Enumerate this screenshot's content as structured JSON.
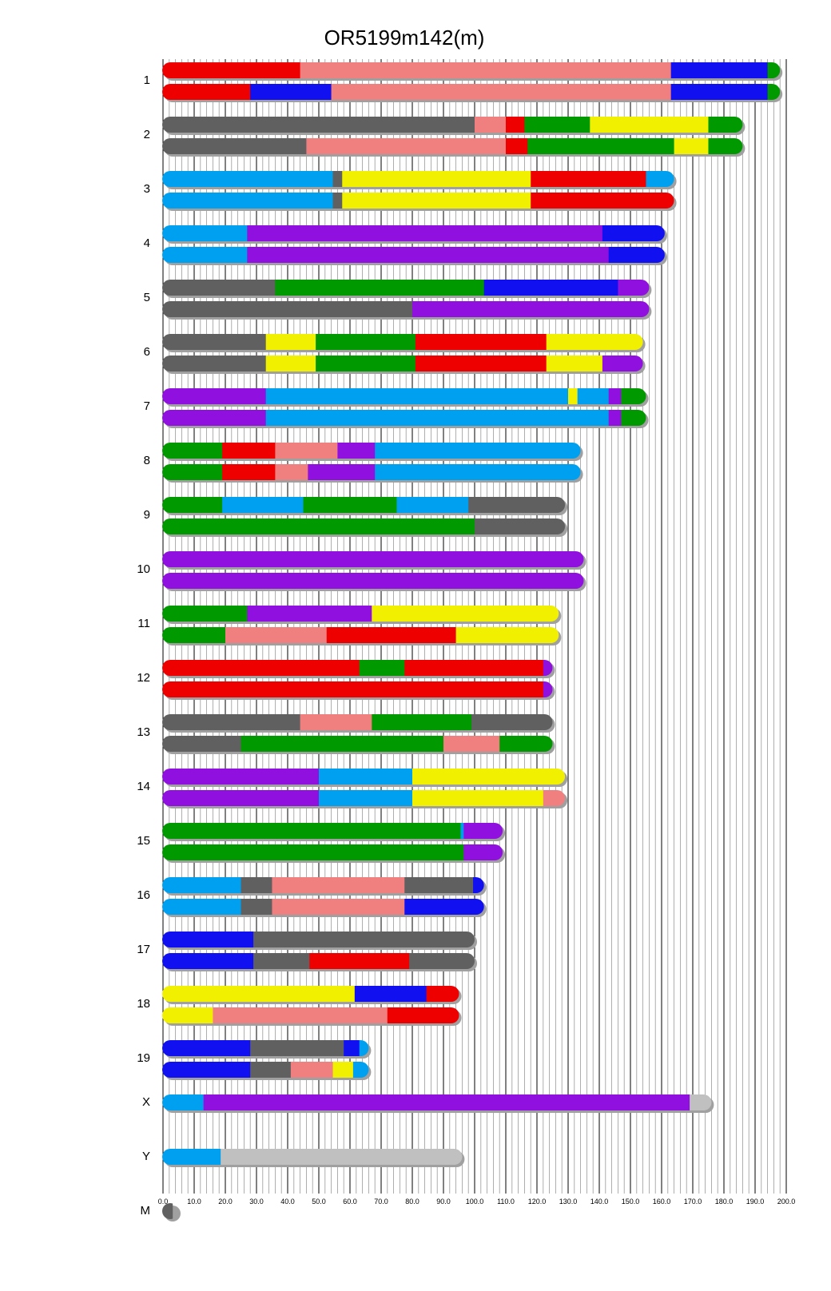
{
  "chart_data": {
    "type": "bar",
    "title": "OR5199m142(m)",
    "xlim": [
      0,
      200
    ],
    "x_ticks": [
      "0.0",
      "10.0",
      "20.0",
      "30.0",
      "40.0",
      "50.0",
      "60.0",
      "70.0",
      "80.0",
      "90.0",
      "100.0",
      "110.0",
      "120.0",
      "130.0",
      "140.0",
      "150.0",
      "160.0",
      "170.0",
      "180.0",
      "190.0",
      "200.0"
    ],
    "grid": true,
    "colors": {
      "red": "#ef0000",
      "pink": "#f08080",
      "blue": "#1010f0",
      "green": "#009900",
      "gray": "#606060",
      "yellow": "#f0f000",
      "cyan": "#00a0f0",
      "purple": "#9010e0",
      "lightgray": "#c0c0c0"
    },
    "chromosomes": [
      {
        "label": "1",
        "length": 198,
        "haplotypes": [
          [
            {
              "end": 44,
              "color": "red"
            },
            {
              "end": 163,
              "color": "pink"
            },
            {
              "end": 194,
              "color": "blue"
            },
            {
              "end": 198,
              "color": "green"
            }
          ],
          [
            {
              "end": 28,
              "color": "red"
            },
            {
              "end": 54,
              "color": "blue"
            },
            {
              "end": 163,
              "color": "pink"
            },
            {
              "end": 194,
              "color": "blue"
            },
            {
              "end": 198,
              "color": "green"
            }
          ]
        ]
      },
      {
        "label": "2",
        "length": 186,
        "haplotypes": [
          [
            {
              "end": 100,
              "color": "gray"
            },
            {
              "end": 110,
              "color": "pink"
            },
            {
              "end": 116,
              "color": "red"
            },
            {
              "end": 137,
              "color": "green"
            },
            {
              "end": 175,
              "color": "yellow"
            },
            {
              "end": 186,
              "color": "green"
            }
          ],
          [
            {
              "end": 46,
              "color": "gray"
            },
            {
              "end": 110,
              "color": "pink"
            },
            {
              "end": 117,
              "color": "red"
            },
            {
              "end": 164,
              "color": "green"
            },
            {
              "end": 175,
              "color": "yellow"
            },
            {
              "end": 186,
              "color": "green"
            }
          ]
        ]
      },
      {
        "label": "3",
        "length": 164,
        "haplotypes": [
          [
            {
              "end": 54.5,
              "color": "cyan"
            },
            {
              "end": 57.5,
              "color": "gray"
            },
            {
              "end": 118,
              "color": "yellow"
            },
            {
              "end": 155,
              "color": "red"
            },
            {
              "end": 164,
              "color": "cyan"
            }
          ],
          [
            {
              "end": 54.5,
              "color": "cyan"
            },
            {
              "end": 57.5,
              "color": "gray"
            },
            {
              "end": 118,
              "color": "yellow"
            },
            {
              "end": 164,
              "color": "red"
            }
          ]
        ]
      },
      {
        "label": "4",
        "length": 161,
        "haplotypes": [
          [
            {
              "end": 27,
              "color": "cyan"
            },
            {
              "end": 141,
              "color": "purple"
            },
            {
              "end": 161,
              "color": "blue"
            }
          ],
          [
            {
              "end": 27,
              "color": "cyan"
            },
            {
              "end": 143,
              "color": "purple"
            },
            {
              "end": 161,
              "color": "blue"
            }
          ]
        ]
      },
      {
        "label": "5",
        "length": 156,
        "haplotypes": [
          [
            {
              "end": 36,
              "color": "gray"
            },
            {
              "end": 103,
              "color": "green"
            },
            {
              "end": 146,
              "color": "blue"
            },
            {
              "end": 156,
              "color": "purple"
            }
          ],
          [
            {
              "end": 80,
              "color": "gray"
            },
            {
              "end": 156,
              "color": "purple"
            }
          ]
        ]
      },
      {
        "label": "6",
        "length": 154,
        "haplotypes": [
          [
            {
              "end": 33,
              "color": "gray"
            },
            {
              "end": 49,
              "color": "yellow"
            },
            {
              "end": 81,
              "color": "green"
            },
            {
              "end": 123,
              "color": "red"
            },
            {
              "end": 154,
              "color": "yellow"
            }
          ],
          [
            {
              "end": 33,
              "color": "gray"
            },
            {
              "end": 49,
              "color": "yellow"
            },
            {
              "end": 81,
              "color": "green"
            },
            {
              "end": 123,
              "color": "red"
            },
            {
              "end": 141,
              "color": "yellow"
            },
            {
              "end": 154,
              "color": "purple"
            }
          ]
        ]
      },
      {
        "label": "7",
        "length": 155,
        "haplotypes": [
          [
            {
              "end": 33,
              "color": "purple"
            },
            {
              "end": 130,
              "color": "cyan"
            },
            {
              "end": 133,
              "color": "yellow"
            },
            {
              "end": 143,
              "color": "cyan"
            },
            {
              "end": 147,
              "color": "purple"
            },
            {
              "end": 155,
              "color": "green"
            }
          ],
          [
            {
              "end": 33,
              "color": "purple"
            },
            {
              "end": 143,
              "color": "cyan"
            },
            {
              "end": 147,
              "color": "purple"
            },
            {
              "end": 155,
              "color": "green"
            }
          ]
        ]
      },
      {
        "label": "8",
        "length": 134,
        "haplotypes": [
          [
            {
              "end": 19,
              "color": "green"
            },
            {
              "end": 36,
              "color": "red"
            },
            {
              "end": 56,
              "color": "pink"
            },
            {
              "end": 68,
              "color": "purple"
            },
            {
              "end": 134,
              "color": "cyan"
            }
          ],
          [
            {
              "end": 19,
              "color": "green"
            },
            {
              "end": 36,
              "color": "red"
            },
            {
              "end": 46.5,
              "color": "pink"
            },
            {
              "end": 68,
              "color": "purple"
            },
            {
              "end": 134,
              "color": "cyan"
            }
          ]
        ]
      },
      {
        "label": "9",
        "length": 129,
        "haplotypes": [
          [
            {
              "end": 19,
              "color": "green"
            },
            {
              "end": 45,
              "color": "cyan"
            },
            {
              "end": 75,
              "color": "green"
            },
            {
              "end": 98,
              "color": "cyan"
            },
            {
              "end": 129,
              "color": "gray"
            }
          ],
          [
            {
              "end": 100,
              "color": "green"
            },
            {
              "end": 129,
              "color": "gray"
            }
          ]
        ]
      },
      {
        "label": "10",
        "length": 135,
        "haplotypes": [
          [
            {
              "end": 135,
              "color": "purple"
            }
          ],
          [
            {
              "end": 135,
              "color": "purple"
            }
          ]
        ]
      },
      {
        "label": "11",
        "length": 127,
        "haplotypes": [
          [
            {
              "end": 27,
              "color": "green"
            },
            {
              "end": 67,
              "color": "purple"
            },
            {
              "end": 127,
              "color": "yellow"
            }
          ],
          [
            {
              "end": 20,
              "color": "green"
            },
            {
              "end": 52.5,
              "color": "pink"
            },
            {
              "end": 94,
              "color": "red"
            },
            {
              "end": 127,
              "color": "yellow"
            }
          ]
        ]
      },
      {
        "label": "12",
        "length": 125,
        "haplotypes": [
          [
            {
              "end": 63,
              "color": "red"
            },
            {
              "end": 77.5,
              "color": "green"
            },
            {
              "end": 122,
              "color": "red"
            },
            {
              "end": 125,
              "color": "purple"
            }
          ],
          [
            {
              "end": 122,
              "color": "red"
            },
            {
              "end": 125,
              "color": "purple"
            }
          ]
        ]
      },
      {
        "label": "13",
        "length": 125,
        "haplotypes": [
          [
            {
              "end": 44,
              "color": "gray"
            },
            {
              "end": 67,
              "color": "pink"
            },
            {
              "end": 99,
              "color": "green"
            },
            {
              "end": 125,
              "color": "gray"
            }
          ],
          [
            {
              "end": 25,
              "color": "gray"
            },
            {
              "end": 90,
              "color": "green"
            },
            {
              "end": 108,
              "color": "pink"
            },
            {
              "end": 125,
              "color": "green"
            }
          ]
        ]
      },
      {
        "label": "14",
        "length": 129,
        "haplotypes": [
          [
            {
              "end": 50,
              "color": "purple"
            },
            {
              "end": 80,
              "color": "cyan"
            },
            {
              "end": 129,
              "color": "yellow"
            }
          ],
          [
            {
              "end": 50,
              "color": "purple"
            },
            {
              "end": 80,
              "color": "cyan"
            },
            {
              "end": 122,
              "color": "yellow"
            },
            {
              "end": 129,
              "color": "pink"
            }
          ]
        ]
      },
      {
        "label": "15",
        "length": 109,
        "haplotypes": [
          [
            {
              "end": 95.5,
              "color": "green"
            },
            {
              "end": 96.5,
              "color": "cyan"
            },
            {
              "end": 109,
              "color": "purple"
            }
          ],
          [
            {
              "end": 96.5,
              "color": "green"
            },
            {
              "end": 109,
              "color": "purple"
            }
          ]
        ]
      },
      {
        "label": "16",
        "length": 103,
        "haplotypes": [
          [
            {
              "end": 25,
              "color": "cyan"
            },
            {
              "end": 35,
              "color": "gray"
            },
            {
              "end": 77.5,
              "color": "pink"
            },
            {
              "end": 99.5,
              "color": "gray"
            },
            {
              "end": 103,
              "color": "blue"
            }
          ],
          [
            {
              "end": 25,
              "color": "cyan"
            },
            {
              "end": 35,
              "color": "gray"
            },
            {
              "end": 77.5,
              "color": "pink"
            },
            {
              "end": 103,
              "color": "blue"
            }
          ]
        ]
      },
      {
        "label": "17",
        "length": 100,
        "haplotypes": [
          [
            {
              "end": 29,
              "color": "blue"
            },
            {
              "end": 100,
              "color": "gray"
            }
          ],
          [
            {
              "end": 29,
              "color": "blue"
            },
            {
              "end": 47,
              "color": "gray"
            },
            {
              "end": 79,
              "color": "red"
            },
            {
              "end": 100,
              "color": "gray"
            }
          ]
        ]
      },
      {
        "label": "18",
        "length": 95,
        "haplotypes": [
          [
            {
              "end": 61.5,
              "color": "yellow"
            },
            {
              "end": 84.5,
              "color": "blue"
            },
            {
              "end": 95,
              "color": "red"
            }
          ],
          [
            {
              "end": 16,
              "color": "yellow"
            },
            {
              "end": 72,
              "color": "pink"
            },
            {
              "end": 95,
              "color": "red"
            }
          ]
        ]
      },
      {
        "label": "19",
        "length": 66,
        "haplotypes": [
          [
            {
              "end": 28,
              "color": "blue"
            },
            {
              "end": 58,
              "color": "gray"
            },
            {
              "end": 63,
              "color": "blue"
            },
            {
              "end": 66,
              "color": "cyan"
            }
          ],
          [
            {
              "end": 28,
              "color": "blue"
            },
            {
              "end": 41,
              "color": "gray"
            },
            {
              "end": 54.5,
              "color": "pink"
            },
            {
              "end": 61,
              "color": "yellow"
            },
            {
              "end": 66,
              "color": "cyan"
            }
          ]
        ]
      },
      {
        "label": "X",
        "length": 176,
        "haplotypes": [
          [
            {
              "end": 13,
              "color": "cyan"
            },
            {
              "end": 169,
              "color": "purple"
            },
            {
              "end": 176,
              "color": "lightgray"
            }
          ]
        ]
      },
      {
        "label": "Y",
        "length": 96,
        "haplotypes": [
          [
            {
              "end": 18.5,
              "color": "cyan"
            },
            {
              "end": 96,
              "color": "lightgray"
            }
          ]
        ]
      },
      {
        "label": "M",
        "length": 3,
        "haplotypes": [
          [
            {
              "end": 3,
              "color": "gray"
            }
          ]
        ]
      }
    ]
  }
}
